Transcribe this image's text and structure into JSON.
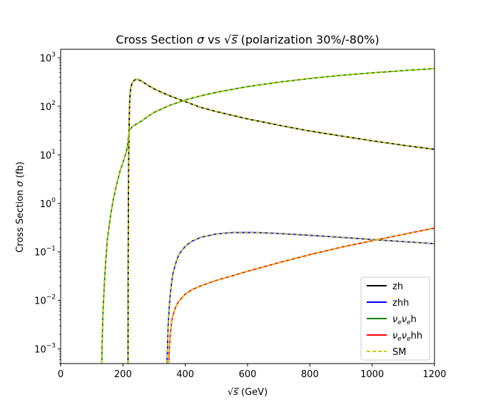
{
  "chart_data": {
    "type": "line",
    "title": "Cross Section σ vs √s (polarization 30%/-80%)",
    "xlabel": "√s (GeV)",
    "ylabel": "Cross Section σ (fb)",
    "xlim": [
      0,
      1200
    ],
    "ylim": [
      0.0005,
      1500
    ],
    "y_scale": "log",
    "grid": false,
    "legend_position": "lower-right",
    "x_ticks": [
      0,
      200,
      400,
      600,
      800,
      1000,
      1200
    ],
    "x_tick_labels": [
      "0",
      "200",
      "400",
      "600",
      "800",
      "1000",
      "1200"
    ],
    "y_ticks": [
      0.001,
      0.01,
      0.1,
      1,
      10,
      100,
      1000
    ],
    "y_tick_exponents": [
      "−3",
      "−2",
      "−1",
      "0",
      "1",
      "2",
      "3"
    ],
    "y_tick_base": "10",
    "series": [
      {
        "name": "zh",
        "color": "#000000",
        "dash": "solid",
        "x": [
          216.3,
          216.8,
          217.5,
          218.5,
          220,
          222,
          225,
          230,
          235,
          240,
          245,
          250,
          260,
          270,
          280,
          300,
          320,
          350,
          400,
          450,
          500,
          600,
          700,
          800,
          900,
          1000,
          1100,
          1200
        ],
        "y": [
          0.0005,
          0.05,
          1,
          10,
          50,
          150,
          240,
          310,
          340,
          355,
          360,
          355,
          330,
          300,
          270,
          230,
          200,
          165,
          125,
          95,
          78,
          55,
          41,
          31,
          24.5,
          19.5,
          15.8,
          13
        ]
      },
      {
        "name": "zhh",
        "color": "#0000ff",
        "dash": "solid",
        "x": [
          341,
          343,
          345,
          350,
          355,
          360,
          370,
          380,
          400,
          420,
          450,
          500,
          550,
          600,
          650,
          700,
          800,
          900,
          1000,
          1100,
          1200
        ],
        "y": [
          0.0005,
          0.001,
          0.003,
          0.01,
          0.02,
          0.035,
          0.06,
          0.09,
          0.13,
          0.165,
          0.2,
          0.235,
          0.25,
          0.252,
          0.248,
          0.24,
          0.22,
          0.2,
          0.18,
          0.163,
          0.148
        ]
      },
      {
        "name": "ν_eν_eh",
        "color": "#008000",
        "dash": "solid",
        "x": [
          132,
          134,
          136,
          140,
          145,
          150,
          160,
          170,
          180,
          190,
          200,
          210,
          215,
          218,
          222,
          230,
          240,
          260,
          280,
          300,
          350,
          400,
          450,
          500,
          600,
          700,
          800,
          900,
          1000,
          1100,
          1200
        ],
        "y": [
          0.0005,
          0.002,
          0.006,
          0.02,
          0.07,
          0.18,
          0.55,
          1.3,
          2.5,
          4.5,
          7,
          11,
          16,
          25,
          33,
          38,
          42,
          50,
          62,
          75,
          105,
          135,
          165,
          195,
          255,
          315,
          375,
          435,
          490,
          545,
          600
        ]
      },
      {
        "name": "ν_eν_ehh",
        "color": "#ff0000",
        "dash": "solid",
        "x": [
          347,
          349,
          352,
          356,
          360,
          370,
          380,
          400,
          420,
          450,
          500,
          550,
          600,
          700,
          800,
          900,
          1000,
          1100,
          1200
        ],
        "y": [
          0.0005,
          0.001,
          0.002,
          0.0035,
          0.0048,
          0.0075,
          0.0098,
          0.0135,
          0.0165,
          0.02,
          0.026,
          0.032,
          0.04,
          0.06,
          0.088,
          0.125,
          0.17,
          0.23,
          0.31
        ]
      }
    ],
    "legend": [
      {
        "label": "zh",
        "color": "#000000",
        "dash": "solid"
      },
      {
        "label": "zhh",
        "color": "#0000ff",
        "dash": "solid"
      },
      {
        "label": "ν_eν_eh",
        "color": "#008000",
        "dash": "solid"
      },
      {
        "label": "ν_eν_ehh",
        "color": "#ff0000",
        "dash": "solid"
      },
      {
        "label": "SM",
        "color": "#cccc00",
        "dash": "dashed"
      }
    ]
  }
}
